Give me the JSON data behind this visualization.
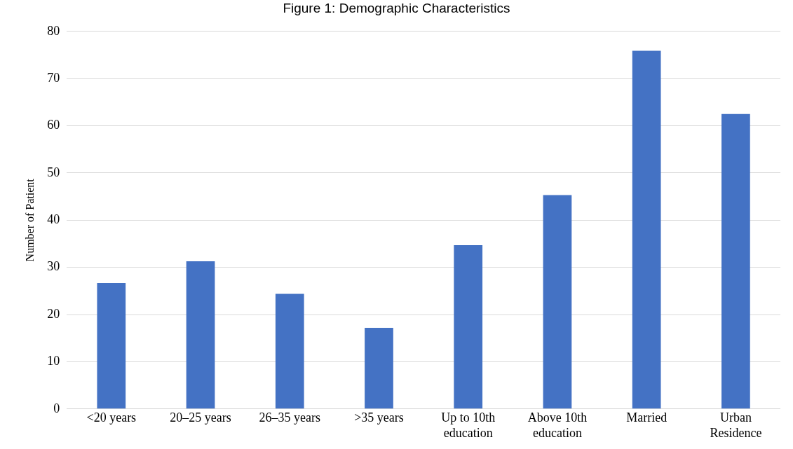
{
  "chart_data": {
    "type": "bar",
    "title": "Figure 1: Demographic Characteristics",
    "ylabel": "Number of Patient",
    "categories": [
      "<20 years",
      "20–25 years",
      "26–35 years",
      ">35 years",
      "Up to 10th education",
      "Above 10th education",
      "Married",
      "Urban Residence"
    ],
    "values": [
      26.7,
      31.3,
      24.4,
      17.2,
      34.7,
      45.3,
      75.9,
      62.5
    ],
    "color": "#4472c4",
    "ylim": [
      0,
      80
    ],
    "yticks": [
      0,
      10,
      20,
      30,
      40,
      50,
      60,
      70,
      80
    ],
    "grid": "y",
    "legend": false
  }
}
